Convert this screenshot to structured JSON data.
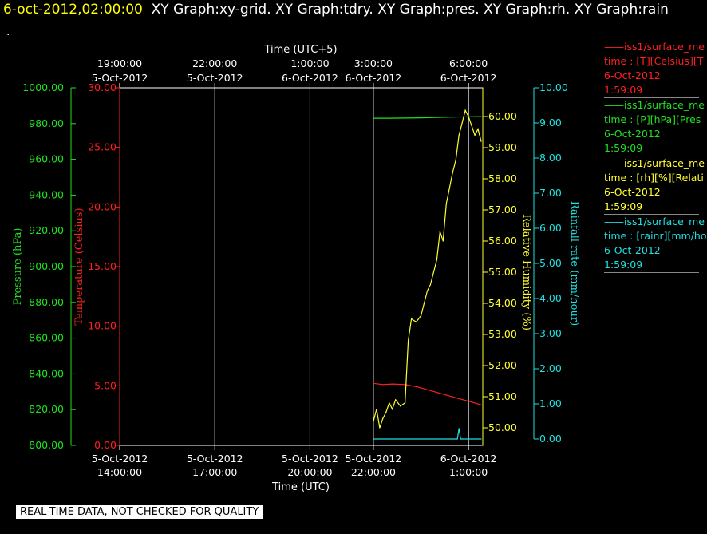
{
  "header": {
    "timestamp": "6-oct-2012,02:00:00",
    "title": "XY Graph:xy-grid.  XY Graph:tdry.  XY Graph:pres.  XY Graph:rh.  XY Graph:rain"
  },
  "dot": ".",
  "notice": "REAL-TIME DATA, NOT CHECKED FOR QUALITY",
  "legend": [
    {
      "name": "iss1/surface_me",
      "line2": "time : [T][Celsius][T",
      "line3": "6-Oct-2012",
      "line4": "1:59:09",
      "color": "#ff2020"
    },
    {
      "name": "iss1/surface_me",
      "line2": "time : [P][hPa][Pres",
      "line3": "6-Oct-2012",
      "line4": "1:59:09",
      "color": "#20e020"
    },
    {
      "name": "iss1/surface_me",
      "line2": "time : [rh][%][Relati",
      "line3": "6-Oct-2012",
      "line4": "1:59:09",
      "color": "#ffff30"
    },
    {
      "name": "iss1/surface_me",
      "line2": "time : [rainr][mm/ho",
      "line3": "6-Oct-2012",
      "line4": "1:59:09",
      "color": "#20e0e0"
    }
  ],
  "chart_data": {
    "type": "line",
    "top_axis": {
      "title": "Time (UTC+5)",
      "ticks": [
        {
          "time": "19:00:00",
          "date": "5-Oct-2012"
        },
        {
          "time": "22:00:00",
          "date": "5-Oct-2012"
        },
        {
          "time": "1:00:00",
          "date": "6-Oct-2012"
        },
        {
          "time": "3:00:00",
          "date": "6-Oct-2012"
        },
        {
          "time": "6:00:00",
          "date": "6-Oct-2012"
        }
      ]
    },
    "bottom_axis": {
      "title": "Time (UTC)",
      "ticks": [
        {
          "date": "5-Oct-2012",
          "time": "14:00:00",
          "x": 14
        },
        {
          "date": "5-Oct-2012",
          "time": "17:00:00",
          "x": 17
        },
        {
          "date": "5-Oct-2012",
          "time": "20:00:00",
          "x": 20
        },
        {
          "date": "5-Oct-2012",
          "time": "22:00:00",
          "x": 22
        },
        {
          "date": "6-Oct-2012",
          "time": "1:00:00",
          "x": 25
        }
      ],
      "xlim": [
        14,
        25.45
      ]
    },
    "gridlines_x": [
      17,
      20,
      22,
      25
    ],
    "axes": {
      "pressure": {
        "title": "Pressure (hPa)",
        "color": "#20e020",
        "ylim": [
          800,
          1000
        ],
        "ticks": [
          "800.00",
          "820.00",
          "840.00",
          "860.00",
          "880.00",
          "900.00",
          "920.00",
          "940.00",
          "960.00",
          "980.00",
          "1000.00"
        ]
      },
      "temperature": {
        "title": "Temperature (Celsius)",
        "color": "#ff2020",
        "ylim": [
          0,
          30
        ],
        "ticks": [
          "0.00",
          "5.00",
          "10.00",
          "15.00",
          "20.00",
          "25.00",
          "30.00"
        ]
      },
      "humidity": {
        "title": "Relative Humidity (%)",
        "color": "#ffff30",
        "ylim": [
          49.5,
          60.4
        ],
        "ticks": [
          "50.00",
          "51.00",
          "52.00",
          "53.00",
          "54.00",
          "55.00",
          "56.00",
          "57.00",
          "58.00",
          "59.00",
          "60.00"
        ]
      },
      "rainfall": {
        "title": "Rainfall rate (mm/hour)",
        "color": "#20e0e0",
        "ylim": [
          -0.2,
          10
        ],
        "ticks": [
          "0.00",
          "1.00",
          "2.00",
          "3.00",
          "4.00",
          "5.00",
          "6.00",
          "7.00",
          "8.00",
          "9.00",
          "10.00"
        ]
      }
    },
    "series": [
      {
        "name": "Temperature",
        "axis": "temperature",
        "color": "#ff2020",
        "x": [
          22.0,
          22.3,
          22.6,
          23.0,
          23.4,
          23.8,
          24.2,
          24.6,
          25.0,
          25.4
        ],
        "y": [
          5.2,
          5.1,
          5.15,
          5.1,
          4.9,
          4.6,
          4.3,
          4.0,
          3.7,
          3.4
        ]
      },
      {
        "name": "Pressure",
        "axis": "pressure",
        "color": "#20e020",
        "x": [
          22.0,
          22.5,
          23.0,
          23.5,
          24.0,
          24.5,
          25.0,
          25.4
        ],
        "y": [
          983.0,
          983.0,
          983.1,
          983.2,
          983.4,
          983.6,
          983.8,
          983.9
        ]
      },
      {
        "name": "Relative Humidity",
        "axis": "humidity",
        "color": "#ffff30",
        "x": [
          22.0,
          22.1,
          22.2,
          22.3,
          22.4,
          22.5,
          22.6,
          22.7,
          22.85,
          23.0,
          23.1,
          23.2,
          23.35,
          23.5,
          23.6,
          23.7,
          23.8,
          23.9,
          24.0,
          24.1,
          24.2,
          24.3,
          24.4,
          24.5,
          24.6,
          24.7,
          24.8,
          24.9,
          25.0,
          25.1,
          25.2,
          25.3,
          25.4
        ],
        "y": [
          50.2,
          50.6,
          50.0,
          50.3,
          50.5,
          50.8,
          50.6,
          50.9,
          50.7,
          50.8,
          52.8,
          53.5,
          53.4,
          53.6,
          54.0,
          54.4,
          54.6,
          55.0,
          55.4,
          56.3,
          56.0,
          57.2,
          57.7,
          58.2,
          58.6,
          59.4,
          59.8,
          60.2,
          60.0,
          59.7,
          59.4,
          59.6,
          59.2
        ]
      },
      {
        "name": "Rainfall rate",
        "axis": "rainfall",
        "color": "#20e0e0",
        "x": [
          22.0,
          24.5,
          24.65,
          24.7,
          24.75,
          24.8,
          25.4
        ],
        "y": [
          0.0,
          0.0,
          0.0,
          0.3,
          0.0,
          0.0,
          0.0
        ]
      }
    ]
  }
}
